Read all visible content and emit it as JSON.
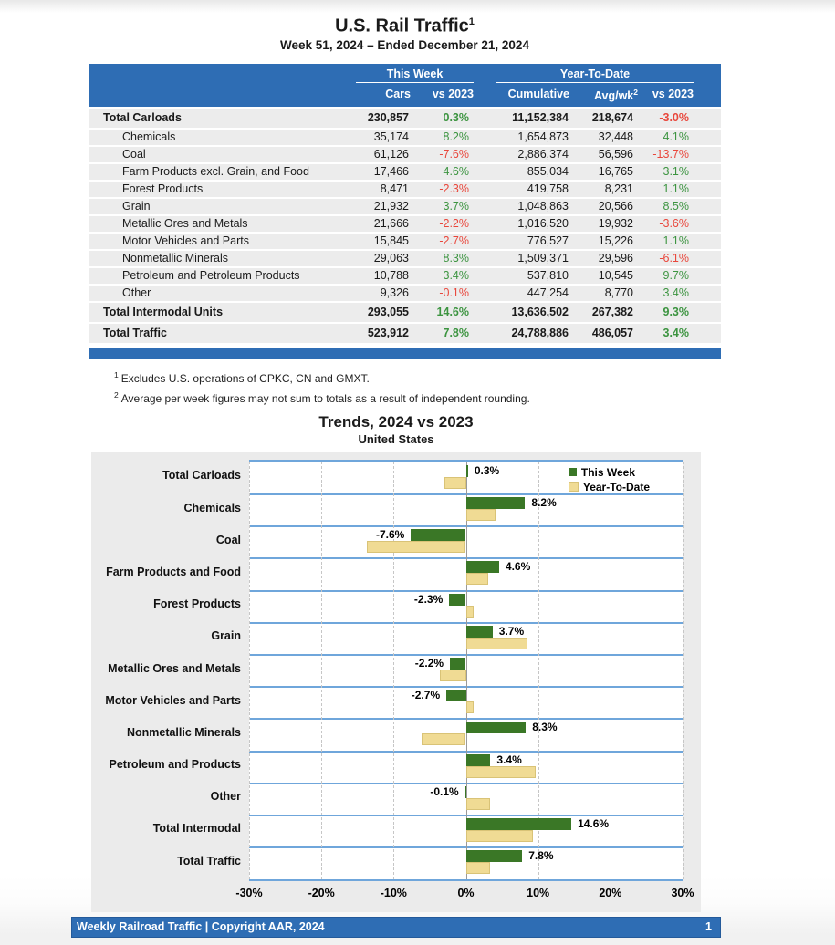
{
  "header": {
    "title": "U.S. Rail Traffic",
    "title_superscript": "1",
    "subtitle": "Week 51, 2024 – Ended December 21, 2024"
  },
  "colors": {
    "accent_blue": "#2E6DB4",
    "row_gray": "#ECECEC",
    "green_text": "#3C9440",
    "red_text": "#E9473C",
    "bar_green": "#3A7726",
    "bar_tan": "#F0DB94",
    "chart_line_blue": "#6FA6DB"
  },
  "table": {
    "group_headers": {
      "this_week": "This Week",
      "year_to_date": "Year-To-Date"
    },
    "column_headers": {
      "cars": "Cars",
      "vs2023": "vs 2023",
      "cumulative": "Cumulative",
      "avg_wk": "Avg/wk",
      "avg_wk_sup": "2",
      "ytd_vs2023": "vs 2023"
    },
    "rows": [
      {
        "label": "Total Carloads",
        "bold": true,
        "indent": false,
        "cars": "230,857",
        "cars_pct": "0.3%",
        "cars_pct_cls": "pos",
        "cumulative": "11,152,384",
        "avg_wk": "218,674",
        "ytd_pct": "-3.0%",
        "ytd_pct_cls": "neg"
      },
      {
        "label": "Chemicals",
        "bold": false,
        "indent": true,
        "cars": "35,174",
        "cars_pct": "8.2%",
        "cars_pct_cls": "pos",
        "cumulative": "1,654,873",
        "avg_wk": "32,448",
        "ytd_pct": "4.1%",
        "ytd_pct_cls": "pos"
      },
      {
        "label": "Coal",
        "bold": false,
        "indent": true,
        "cars": "61,126",
        "cars_pct": "-7.6%",
        "cars_pct_cls": "neg",
        "cumulative": "2,886,374",
        "avg_wk": "56,596",
        "ytd_pct": "-13.7%",
        "ytd_pct_cls": "neg"
      },
      {
        "label": "Farm Products excl. Grain, and Food",
        "bold": false,
        "indent": true,
        "cars": "17,466",
        "cars_pct": "4.6%",
        "cars_pct_cls": "pos",
        "cumulative": "855,034",
        "avg_wk": "16,765",
        "ytd_pct": "3.1%",
        "ytd_pct_cls": "pos"
      },
      {
        "label": "Forest Products",
        "bold": false,
        "indent": true,
        "cars": "8,471",
        "cars_pct": "-2.3%",
        "cars_pct_cls": "neg",
        "cumulative": "419,758",
        "avg_wk": "8,231",
        "ytd_pct": "1.1%",
        "ytd_pct_cls": "pos"
      },
      {
        "label": "Grain",
        "bold": false,
        "indent": true,
        "cars": "21,932",
        "cars_pct": "3.7%",
        "cars_pct_cls": "pos",
        "cumulative": "1,048,863",
        "avg_wk": "20,566",
        "ytd_pct": "8.5%",
        "ytd_pct_cls": "pos"
      },
      {
        "label": "Metallic Ores and Metals",
        "bold": false,
        "indent": true,
        "cars": "21,666",
        "cars_pct": "-2.2%",
        "cars_pct_cls": "neg",
        "cumulative": "1,016,520",
        "avg_wk": "19,932",
        "ytd_pct": "-3.6%",
        "ytd_pct_cls": "neg"
      },
      {
        "label": "Motor Vehicles and Parts",
        "bold": false,
        "indent": true,
        "cars": "15,845",
        "cars_pct": "-2.7%",
        "cars_pct_cls": "neg",
        "cumulative": "776,527",
        "avg_wk": "15,226",
        "ytd_pct": "1.1%",
        "ytd_pct_cls": "pos"
      },
      {
        "label": "Nonmetallic Minerals",
        "bold": false,
        "indent": true,
        "cars": "29,063",
        "cars_pct": "8.3%",
        "cars_pct_cls": "pos",
        "cumulative": "1,509,371",
        "avg_wk": "29,596",
        "ytd_pct": "-6.1%",
        "ytd_pct_cls": "neg"
      },
      {
        "label": "Petroleum and Petroleum Products",
        "bold": false,
        "indent": true,
        "cars": "10,788",
        "cars_pct": "3.4%",
        "cars_pct_cls": "pos",
        "cumulative": "537,810",
        "avg_wk": "10,545",
        "ytd_pct": "9.7%",
        "ytd_pct_cls": "pos"
      },
      {
        "label": "Other",
        "bold": false,
        "indent": true,
        "cars": "9,326",
        "cars_pct": "-0.1%",
        "cars_pct_cls": "neg",
        "cumulative": "447,254",
        "avg_wk": "8,770",
        "ytd_pct": "3.4%",
        "ytd_pct_cls": "pos"
      },
      {
        "label": "Total Intermodal Units",
        "bold": true,
        "indent": false,
        "cars": "293,055",
        "cars_pct": "14.6%",
        "cars_pct_cls": "pos",
        "cumulative": "13,636,502",
        "avg_wk": "267,382",
        "ytd_pct": "9.3%",
        "ytd_pct_cls": "pos"
      },
      {
        "label": "Total Traffic",
        "bold": true,
        "indent": false,
        "cars": "523,912",
        "cars_pct": "7.8%",
        "cars_pct_cls": "pos",
        "cumulative": "24,788,886",
        "avg_wk": "486,057",
        "ytd_pct": "3.4%",
        "ytd_pct_cls": "pos"
      }
    ]
  },
  "footnotes": [
    {
      "sup": "1",
      "text": "Excludes U.S. operations of CPKC, CN and GMXT."
    },
    {
      "sup": "2",
      "text": "Average per week figures may not sum to totals as a result of independent rounding."
    }
  ],
  "chart": {
    "title": "Trends, 2024 vs 2023",
    "subtitle": "United States",
    "legend": [
      {
        "label": "This Week",
        "color": "#3A7726"
      },
      {
        "label": "Year-To-Date",
        "color": "#F0DB94"
      }
    ],
    "x_ticks": [
      "-30%",
      "-20%",
      "-10%",
      "0%",
      "10%",
      "20%",
      "30%"
    ]
  },
  "chart_data": {
    "type": "bar",
    "orientation": "horizontal",
    "title": "Trends, 2024 vs 2023",
    "subtitle": "United States",
    "xlim": [
      -30,
      30
    ],
    "x_tick_step": 10,
    "grid": "dashed-vertical",
    "legend_position": "top-right-inside",
    "categories": [
      "Total Carloads",
      "Chemicals",
      "Coal",
      "Farm Products and Food",
      "Forest Products",
      "Grain",
      "Metallic Ores and Metals",
      "Motor Vehicles and Parts",
      "Nonmetallic Minerals",
      "Petroleum and Products",
      "Other",
      "Total Intermodal",
      "Total Traffic"
    ],
    "series": [
      {
        "name": "This Week",
        "color": "#3A7726",
        "values": [
          0.3,
          8.2,
          -7.6,
          4.6,
          -2.3,
          3.7,
          -2.2,
          -2.7,
          8.3,
          3.4,
          -0.1,
          14.6,
          7.8
        ]
      },
      {
        "name": "Year-To-Date",
        "color": "#F0DB94",
        "values": [
          -3.0,
          4.1,
          -13.7,
          3.1,
          1.1,
          8.5,
          -3.6,
          1.1,
          -6.1,
          9.7,
          3.4,
          9.3,
          3.4
        ]
      }
    ],
    "bar_labels": [
      "0.3%",
      "8.2%",
      "-7.6%",
      "4.6%",
      "-2.3%",
      "3.7%",
      "-2.2%",
      "-2.7%",
      "8.3%",
      "3.4%",
      "-0.1%",
      "14.6%",
      "7.8%"
    ]
  },
  "footer": {
    "left": "Weekly Railroad Traffic | Copyright AAR, 2024",
    "page": "1"
  }
}
